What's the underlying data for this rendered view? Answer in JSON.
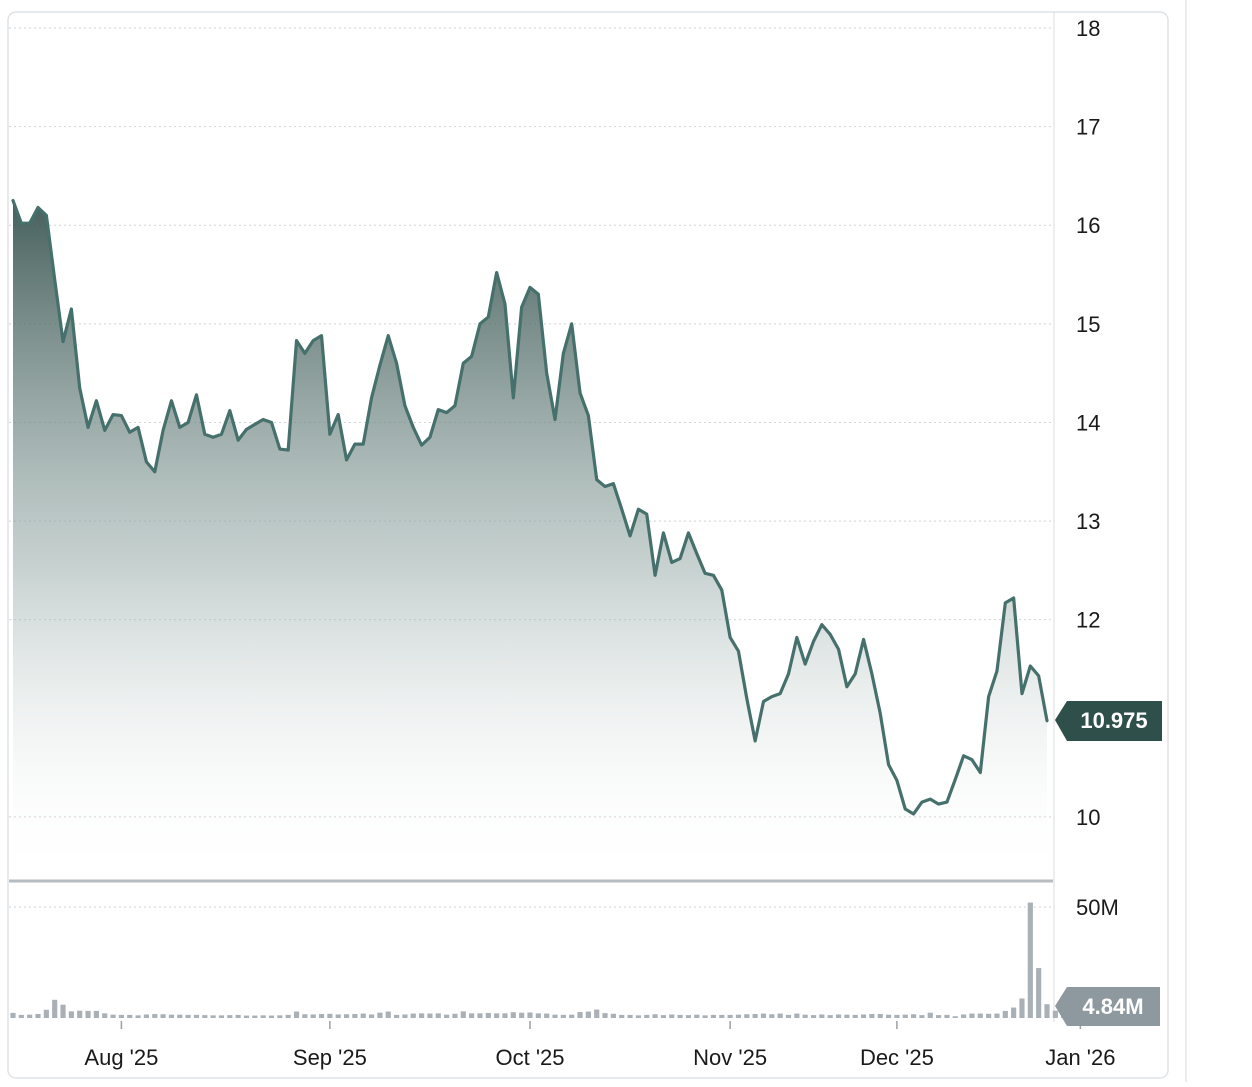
{
  "chart_data": {
    "type": "area",
    "price_axis": {
      "ticks": [
        "18",
        "17",
        "16",
        "15",
        "14",
        "13",
        "12",
        "10"
      ],
      "tick_values": [
        18,
        17,
        16,
        15,
        14,
        13,
        12,
        10
      ],
      "ylim": [
        9.35,
        18.0
      ],
      "current_value_label": "10.975",
      "current_value": 10.975
    },
    "volume_axis": {
      "ticks": [
        "50M"
      ],
      "tick_values": [
        50
      ],
      "current_value_label": "4.84M",
      "current_value": 4.84
    },
    "x_axis": {
      "labels": [
        {
          "text": "Aug '25",
          "index": 13
        },
        {
          "text": "Sep '25",
          "index": 38
        },
        {
          "text": "Oct '25",
          "index": 62
        },
        {
          "text": "Nov '25",
          "index": 86
        },
        {
          "text": "Dec '25",
          "index": 106
        },
        {
          "text": "Jan '26",
          "index": 128
        }
      ]
    },
    "price": [
      16.25,
      16.02,
      16.02,
      16.18,
      16.1,
      15.45,
      14.82,
      15.15,
      14.35,
      13.95,
      14.22,
      13.92,
      14.08,
      14.07,
      13.9,
      13.95,
      13.6,
      13.5,
      13.92,
      14.22,
      13.95,
      14.0,
      14.28,
      13.88,
      13.85,
      13.88,
      14.12,
      13.82,
      13.93,
      13.98,
      14.03,
      14.0,
      13.73,
      13.72,
      14.83,
      14.7,
      14.83,
      14.88,
      13.88,
      14.08,
      13.62,
      13.78,
      13.78,
      14.25,
      14.58,
      14.88,
      14.6,
      14.17,
      13.95,
      13.77,
      13.85,
      14.13,
      14.1,
      14.17,
      14.6,
      14.67,
      15.0,
      15.07,
      15.52,
      15.2,
      14.25,
      15.17,
      15.37,
      15.3,
      14.5,
      14.03,
      14.7,
      15.0,
      14.3,
      14.07,
      13.42,
      13.35,
      13.38,
      13.12,
      12.85,
      13.12,
      13.07,
      12.45,
      12.88,
      12.58,
      12.62,
      12.88,
      12.67,
      12.47,
      12.45,
      12.3,
      11.82,
      11.68,
      11.2,
      10.77,
      11.17,
      11.22,
      11.25,
      11.45,
      11.82,
      11.55,
      11.78,
      11.95,
      11.85,
      11.7,
      11.32,
      11.45,
      11.8,
      11.45,
      11.05,
      10.53,
      10.37,
      10.08,
      10.03,
      10.15,
      10.18,
      10.13,
      10.15,
      10.38,
      10.62,
      10.58,
      10.45,
      11.22,
      11.48,
      12.17,
      12.22,
      11.25,
      11.53,
      11.43,
      10.975
    ],
    "volume": [
      2.3,
      1.4,
      1.5,
      1.8,
      3.7,
      8.2,
      6.0,
      3.0,
      3.3,
      3.2,
      3.2,
      2.1,
      1.5,
      1.4,
      1.4,
      1.2,
      1.6,
      1.8,
      1.7,
      1.5,
      1.5,
      1.4,
      1.4,
      1.3,
      1.2,
      1.2,
      1.3,
      1.4,
      1.1,
      1.1,
      1.2,
      1.1,
      1.2,
      1.4,
      2.9,
      1.7,
      1.6,
      1.8,
      1.9,
      1.6,
      1.7,
      1.8,
      2.0,
      1.6,
      2.4,
      2.9,
      1.4,
      1.6,
      2.0,
      2.1,
      2.0,
      2.1,
      1.5,
      1.9,
      3.0,
      2.1,
      2.1,
      2.3,
      2.1,
      2.1,
      2.6,
      2.4,
      2.5,
      2.1,
      2.0,
      1.5,
      1.4,
      1.5,
      2.7,
      2.9,
      3.8,
      2.2,
      1.9,
      1.4,
      1.4,
      1.2,
      1.4,
      1.7,
      1.3,
      1.6,
      1.4,
      1.3,
      1.5,
      1.2,
      1.4,
      1.4,
      1.4,
      1.5,
      1.7,
      1.8,
      2.0,
      1.7,
      2.0,
      1.4,
      2.0,
      1.5,
      1.3,
      1.6,
      1.3,
      1.6,
      1.5,
      1.4,
      1.6,
      1.8,
      1.8,
      1.5,
      1.4,
      1.5,
      1.7,
      1.3,
      2.4,
      1.3,
      1.4,
      0.8,
      1.6,
      2.0,
      2.0,
      1.9,
      2.0,
      3.2,
      4.7,
      8.8,
      52.0,
      22.5,
      6.2,
      3.3,
      4.84
    ]
  }
}
